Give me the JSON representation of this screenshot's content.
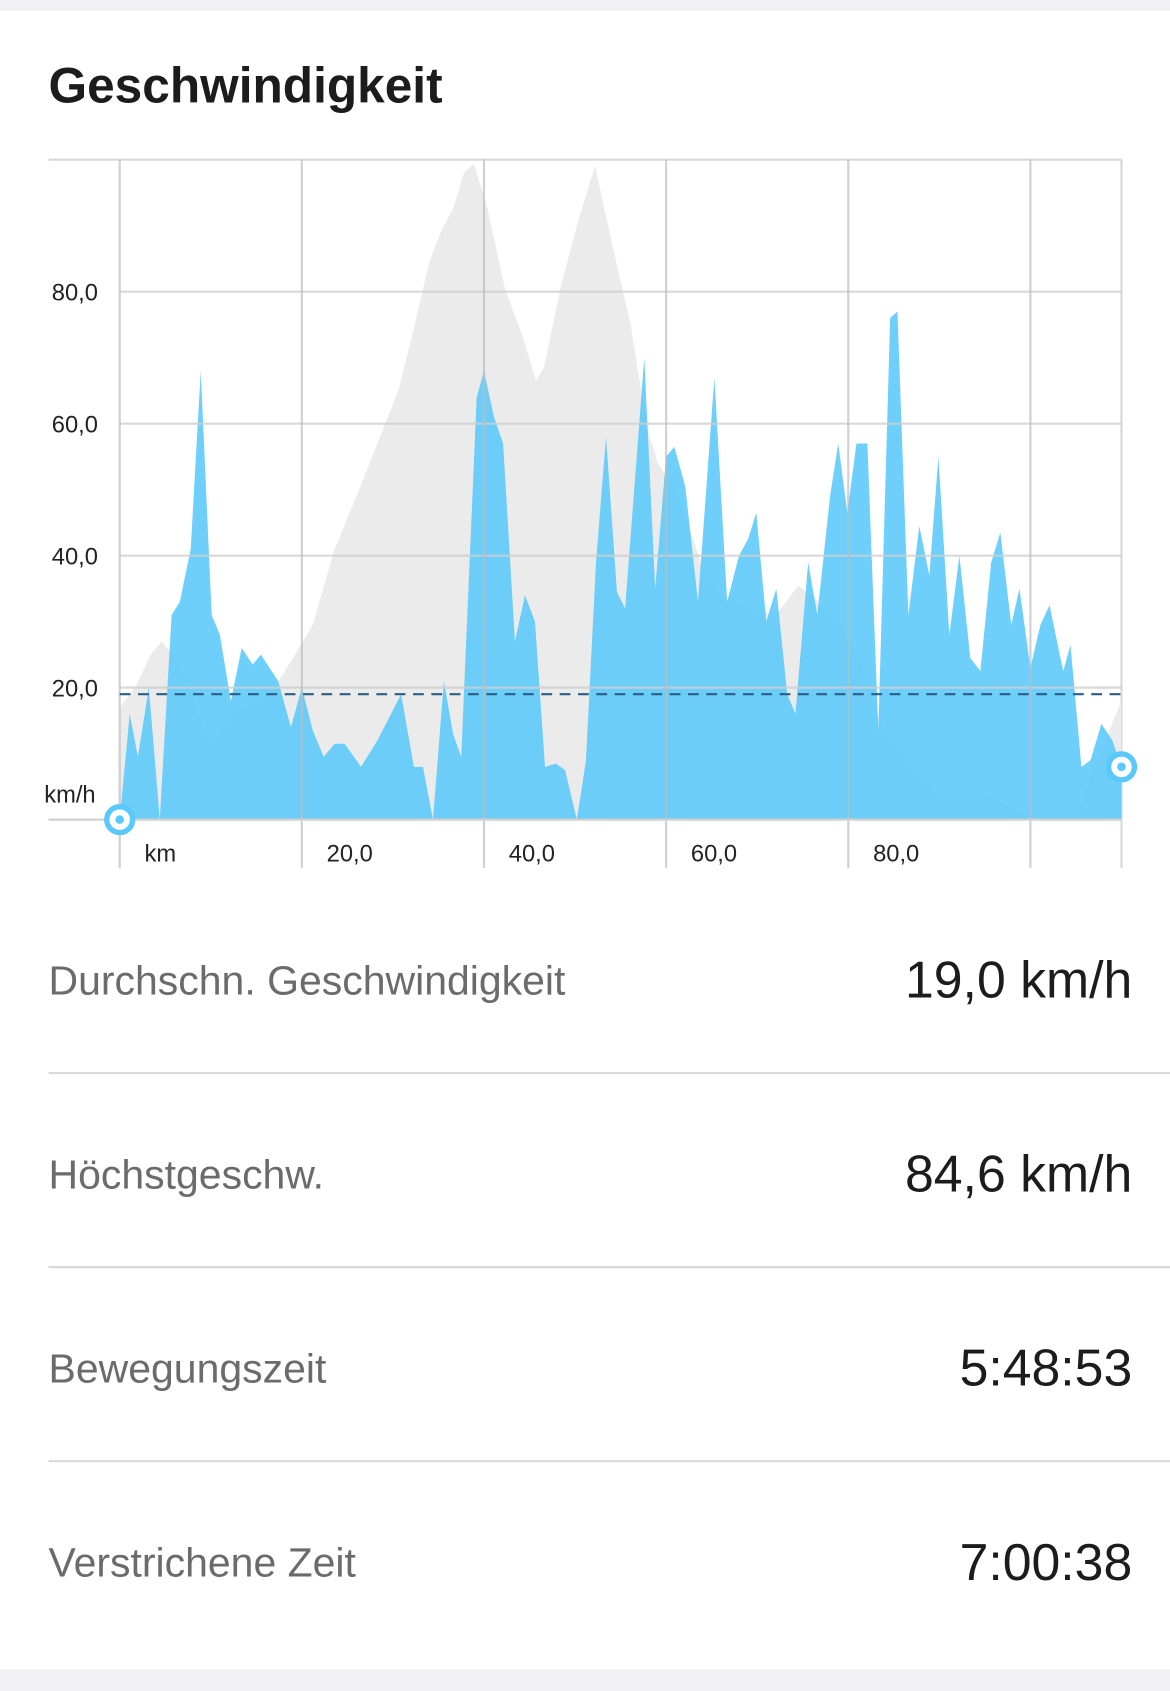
{
  "title": "Geschwindigkeit",
  "chart_data": {
    "type": "area",
    "x_label": "km",
    "y_label": "km/h",
    "xlim": [
      0,
      110
    ],
    "ylim": [
      0,
      100
    ],
    "xticks": [
      {
        "value": 20,
        "label": "20,0"
      },
      {
        "value": 40,
        "label": "40,0"
      },
      {
        "value": 60,
        "label": "60,0"
      },
      {
        "value": 80,
        "label": "80,0"
      }
    ],
    "xgrid": [
      0,
      100
    ],
    "yticks": [
      {
        "value": 20,
        "label": "20,0"
      },
      {
        "value": 40,
        "label": "40,0"
      },
      {
        "value": 60,
        "label": "60,0"
      },
      {
        "value": 80,
        "label": "80,0"
      }
    ],
    "average": 19,
    "grid": true,
    "series": [
      {
        "color": "#ebebeb",
        "x": [
          0,
          1.7,
          3.4,
          4.6,
          5.8,
          7.6,
          9.3,
          10.5,
          12.3,
          14.7,
          17,
          18.8,
          21.2,
          23.6,
          26,
          28.3,
          30.6,
          32.4,
          34,
          35.4,
          36.6,
          37.8,
          38.9,
          40.4,
          42.3,
          44.3,
          45.7,
          46.6,
          48.4,
          50.4,
          52.2,
          54.1,
          56.1,
          57.9,
          59.1,
          61.4,
          63.8,
          66.1,
          69.7,
          72.1,
          74.5,
          76.8,
          79.2,
          81.5,
          83.9,
          86.3,
          88.6,
          91,
          93.4,
          95.7,
          98.1,
          100.5,
          105.2,
          107.6,
          110
        ],
        "values": [
          17,
          20,
          25,
          27,
          25,
          20,
          13.5,
          12,
          16,
          17.5,
          20,
          24,
          29.5,
          41,
          49,
          57,
          65,
          75,
          84.5,
          89.5,
          92.5,
          98,
          99.4,
          92.5,
          80.5,
          73,
          66.5,
          68.5,
          80.5,
          91,
          99,
          87,
          75,
          59.5,
          54,
          49,
          39,
          33.5,
          32,
          31,
          35.5,
          33,
          29.5,
          23,
          13.5,
          9.5,
          5.5,
          3,
          3,
          3.5,
          1.5,
          0.5,
          1,
          10,
          18
        ]
      },
      {
        "color": "#5ac8fa",
        "x": [
          0,
          1.1,
          2,
          3.2,
          4.4,
          5.7,
          6.6,
          7.8,
          8.9,
          10.1,
          11,
          12.2,
          13.4,
          14.6,
          15.5,
          17.4,
          18.8,
          20,
          21.2,
          22.4,
          23.6,
          24.7,
          26.5,
          28.3,
          30.9,
          32.3,
          33.3,
          34.4,
          35.6,
          36.6,
          37.5,
          39.2,
          40,
          41.1,
          42.1,
          43.4,
          44.5,
          45.6,
          46.7,
          47.9,
          48.9,
          50.2,
          51.2,
          52.3,
          53.4,
          54.6,
          55.5,
          57.6,
          58.8,
          60,
          60.9,
          62.1,
          63.5,
          65.3,
          66.7,
          68,
          69,
          69.9,
          71,
          72.1,
          73.3,
          74.2,
          75.6,
          76.6,
          78,
          78.9,
          79.9,
          80.9,
          82.1,
          83.3,
          84.6,
          85.4,
          86.6,
          87.8,
          88.9,
          89.9,
          91.1,
          92.2,
          93.4,
          94.5,
          95.7,
          96.7,
          97.9,
          98.8,
          100,
          101.1,
          102.1,
          103.6,
          104.4,
          105.6,
          106.6,
          107.8,
          109,
          110
        ],
        "values": [
          0,
          16,
          9.5,
          20,
          0,
          31,
          33,
          41,
          68,
          31,
          28,
          18,
          26,
          23.5,
          25,
          21,
          14,
          20,
          13.5,
          9.5,
          11.5,
          11.5,
          8,
          12,
          19,
          8,
          8,
          0,
          21,
          13,
          9.5,
          64,
          68,
          61,
          57,
          27,
          34,
          30,
          8,
          8.5,
          7.5,
          0,
          9,
          39,
          58,
          34.5,
          32,
          70,
          35,
          55,
          56.5,
          50.5,
          33,
          67,
          33,
          40,
          42.5,
          46.5,
          30,
          35,
          19,
          16,
          39,
          31,
          49,
          57,
          46.5,
          57,
          57,
          13.5,
          76,
          77,
          31,
          44.5,
          37,
          55,
          28,
          40,
          24.5,
          22.5,
          39,
          43.5,
          29.5,
          35,
          23,
          29.5,
          32.5,
          22.5,
          26.5,
          8,
          9,
          14.5,
          12,
          8
        ]
      }
    ]
  },
  "stats": {
    "rows": [
      {
        "label": "Durchschn. Geschwindigkeit",
        "value": "19,0 km/h"
      },
      {
        "label": "Höchstgeschw.",
        "value": "84,6 km/h"
      },
      {
        "label": "Bewegungszeit",
        "value": "5:48:53"
      },
      {
        "label": "Verstrichene Zeit",
        "value": "7:00:38"
      }
    ]
  }
}
